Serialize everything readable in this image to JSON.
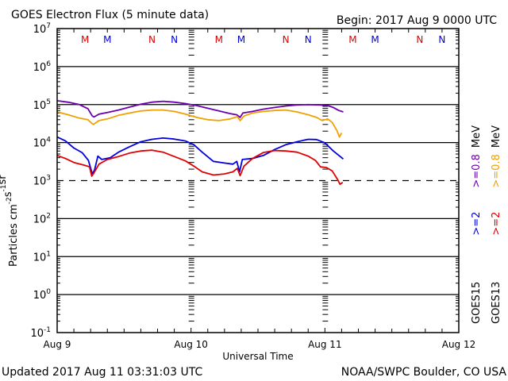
{
  "chart_data": {
    "type": "line",
    "title": "GOES Electron Flux (5 minute data)",
    "begin_label": "Begin: 2017 Aug 9 0000 UTC",
    "xlabel": "Universal Time",
    "ylabel_base": "Particles cm",
    "ylabel_parts": [
      {
        "text": "Particles cm",
        "sup": ""
      },
      {
        "text": "",
        "sup": "-2"
      },
      {
        "text": "s",
        "sup": "-1"
      },
      {
        "text": "sr",
        "sup": "-1"
      }
    ],
    "x_unit": "hours since 2017 Aug 9 00:00 UTC",
    "xlim": [
      0,
      72
    ],
    "x_ticks": [
      {
        "hours": 0,
        "label": "Aug 9"
      },
      {
        "hours": 24,
        "label": "Aug 10"
      },
      {
        "hours": 48,
        "label": "Aug 11"
      },
      {
        "hours": 72,
        "label": "Aug 12"
      }
    ],
    "yscale": "log",
    "ylim_log10": [
      -1,
      7
    ],
    "y_ticks": [
      {
        "exp": 7,
        "base": "10",
        "sup": "7"
      },
      {
        "exp": 6,
        "base": "10",
        "sup": "6"
      },
      {
        "exp": 5,
        "base": "10",
        "sup": "5"
      },
      {
        "exp": 4,
        "base": "10",
        "sup": "4"
      },
      {
        "exp": 3,
        "base": "10",
        "sup": "3"
      },
      {
        "exp": 2,
        "base": "10",
        "sup": "2"
      },
      {
        "exp": 1,
        "base": "10",
        "sup": "1"
      },
      {
        "exp": 0,
        "base": "10",
        "sup": "0"
      },
      {
        "exp": -1,
        "base": "10",
        "sup": "-1"
      }
    ],
    "grid_log10": [
      6,
      5,
      4,
      2,
      1,
      0
    ],
    "threshold": {
      "value": 1000,
      "style": "dashed"
    },
    "day_markers_hours": [
      24,
      48
    ],
    "mn_markers": [
      {
        "hours": 5.0,
        "letter": "M",
        "color": "#e00000"
      },
      {
        "hours": 9.0,
        "letter": "M",
        "color": "#0000e0"
      },
      {
        "hours": 17.0,
        "letter": "N",
        "color": "#e00000"
      },
      {
        "hours": 21.0,
        "letter": "N",
        "color": "#0000e0"
      },
      {
        "hours": 29.0,
        "letter": "M",
        "color": "#e00000"
      },
      {
        "hours": 33.0,
        "letter": "M",
        "color": "#0000e0"
      },
      {
        "hours": 41.0,
        "letter": "N",
        "color": "#e00000"
      },
      {
        "hours": 45.0,
        "letter": "N",
        "color": "#0000e0"
      },
      {
        "hours": 53.0,
        "letter": "M",
        "color": "#e00000"
      },
      {
        "hours": 57.0,
        "letter": "M",
        "color": "#0000e0"
      },
      {
        "hours": 65.0,
        "letter": "N",
        "color": "#e00000"
      },
      {
        "hours": 69.0,
        "letter": "N",
        "color": "#0000e0"
      }
    ],
    "legend": {
      "placement": "right (rotated)",
      "columns": [
        {
          "satellite": "GOES15",
          "entries": [
            {
              "label": ">=2",
              "color": "#0000e0"
            },
            {
              "label": ">=0.8",
              "color": "#6a00b0"
            },
            {
              "label": "MeV",
              "color": "#000000"
            }
          ]
        },
        {
          "satellite": "GOES13",
          "entries": [
            {
              "label": ">=2",
              "color": "#e00000"
            },
            {
              "label": ">=0.8",
              "color": "#f0a000"
            },
            {
              "label": "MeV",
              "color": "#000000"
            }
          ]
        }
      ]
    },
    "series": [
      {
        "name": "GOES15 >=0.8 MeV",
        "color": "#6a00b0",
        "points_hours_flux": [
          [
            0,
            126000
          ],
          [
            2,
            115000
          ],
          [
            4,
            100000
          ],
          [
            5.5,
            78000
          ],
          [
            6.3,
            50000
          ],
          [
            6.6,
            47000
          ],
          [
            7.5,
            56000
          ],
          [
            9,
            62000
          ],
          [
            11,
            72000
          ],
          [
            13,
            86000
          ],
          [
            15,
            102000
          ],
          [
            17,
            116000
          ],
          [
            19,
            122000
          ],
          [
            21,
            116000
          ],
          [
            23,
            106000
          ],
          [
            25,
            94000
          ],
          [
            27,
            80000
          ],
          [
            29,
            68000
          ],
          [
            31,
            58000
          ],
          [
            32.2,
            54000
          ],
          [
            32.8,
            46000
          ],
          [
            33.3,
            60000
          ],
          [
            35,
            66000
          ],
          [
            37,
            76000
          ],
          [
            39,
            84000
          ],
          [
            41,
            92000
          ],
          [
            43,
            98000
          ],
          [
            45,
            100000
          ],
          [
            47,
            98000
          ],
          [
            48.5,
            94000
          ],
          [
            49.5,
            84000
          ],
          [
            50.5,
            70000
          ],
          [
            51.3,
            64000
          ]
        ]
      },
      {
        "name": "GOES13 >=0.8 MeV",
        "color": "#f0a000",
        "points_hours_flux": [
          [
            0,
            64000
          ],
          [
            2,
            54000
          ],
          [
            4,
            44000
          ],
          [
            5.5,
            40000
          ],
          [
            6.2,
            32000
          ],
          [
            6.5,
            30000
          ],
          [
            7.5,
            38000
          ],
          [
            9,
            42000
          ],
          [
            11,
            52000
          ],
          [
            13,
            60000
          ],
          [
            15,
            68000
          ],
          [
            17,
            72000
          ],
          [
            19,
            72000
          ],
          [
            21,
            66000
          ],
          [
            23,
            56000
          ],
          [
            25,
            46000
          ],
          [
            27,
            40000
          ],
          [
            29,
            38000
          ],
          [
            31,
            42000
          ],
          [
            32.3,
            48000
          ],
          [
            32.8,
            38000
          ],
          [
            33.5,
            50000
          ],
          [
            35,
            60000
          ],
          [
            37,
            66000
          ],
          [
            39,
            70000
          ],
          [
            41,
            72000
          ],
          [
            43,
            64000
          ],
          [
            45,
            54000
          ],
          [
            46.5,
            46000
          ],
          [
            47.5,
            38000
          ],
          [
            48.5,
            42000
          ],
          [
            49.3,
            34000
          ],
          [
            50.2,
            20000
          ],
          [
            50.6,
            14000
          ],
          [
            51,
            18000
          ]
        ]
      },
      {
        "name": "GOES15 >=2 MeV",
        "color": "#0000e0",
        "points_hours_flux": [
          [
            0,
            14000
          ],
          [
            1.5,
            11000
          ],
          [
            3,
            7200
          ],
          [
            4.5,
            5400
          ],
          [
            5.6,
            3400
          ],
          [
            6.3,
            1500
          ],
          [
            6.7,
            1900
          ],
          [
            7.3,
            4400
          ],
          [
            8,
            3600
          ],
          [
            9.5,
            4000
          ],
          [
            11,
            5600
          ],
          [
            13,
            7800
          ],
          [
            15,
            10500
          ],
          [
            17,
            12200
          ],
          [
            19,
            13200
          ],
          [
            21,
            12400
          ],
          [
            23,
            11000
          ],
          [
            24.5,
            8800
          ],
          [
            26,
            5600
          ],
          [
            28,
            3200
          ],
          [
            30,
            2900
          ],
          [
            31.5,
            2700
          ],
          [
            32.2,
            3200
          ],
          [
            32.7,
            1700
          ],
          [
            33.2,
            3600
          ],
          [
            35,
            3800
          ],
          [
            37,
            4600
          ],
          [
            39,
            6600
          ],
          [
            41,
            8800
          ],
          [
            43,
            10500
          ],
          [
            45,
            12200
          ],
          [
            46.5,
            12000
          ],
          [
            48,
            9800
          ],
          [
            49.5,
            6000
          ],
          [
            51.3,
            3700
          ]
        ]
      },
      {
        "name": "GOES13 >=2 MeV",
        "color": "#e00000",
        "points_hours_flux": [
          [
            0,
            4600
          ],
          [
            1.5,
            3800
          ],
          [
            3,
            3000
          ],
          [
            5,
            2500
          ],
          [
            5.8,
            2300
          ],
          [
            6.2,
            1300
          ],
          [
            6.6,
            1600
          ],
          [
            7.5,
            2700
          ],
          [
            9,
            3600
          ],
          [
            11,
            4300
          ],
          [
            13,
            5300
          ],
          [
            15,
            6000
          ],
          [
            17,
            6300
          ],
          [
            19,
            5600
          ],
          [
            21,
            4300
          ],
          [
            23,
            3300
          ],
          [
            24.5,
            2400
          ],
          [
            26,
            1700
          ],
          [
            28,
            1400
          ],
          [
            30,
            1500
          ],
          [
            31.5,
            1700
          ],
          [
            32.3,
            2100
          ],
          [
            32.8,
            1350
          ],
          [
            33.5,
            2400
          ],
          [
            35,
            3800
          ],
          [
            37,
            5500
          ],
          [
            39,
            6200
          ],
          [
            41,
            6000
          ],
          [
            43,
            5600
          ],
          [
            45,
            4400
          ],
          [
            46.3,
            3400
          ],
          [
            47.2,
            2300
          ],
          [
            48.3,
            2200
          ],
          [
            49.3,
            1800
          ],
          [
            50.3,
            1050
          ],
          [
            50.7,
            800
          ],
          [
            51.2,
            900
          ]
        ]
      }
    ]
  },
  "footer": {
    "updated": "Updated 2017 Aug 11 03:31:03 UTC",
    "source": "NOAA/SWPC Boulder, CO USA"
  }
}
